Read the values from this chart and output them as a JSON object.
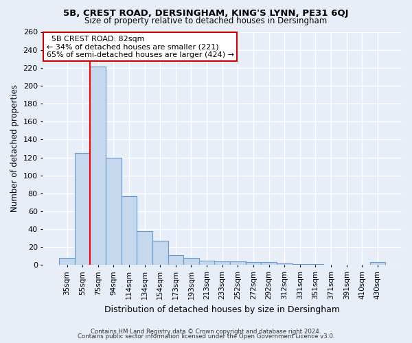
{
  "title1": "5B, CREST ROAD, DERSINGHAM, KING'S LYNN, PE31 6QJ",
  "title2": "Size of property relative to detached houses in Dersingham",
  "xlabel": "Distribution of detached houses by size in Dersingham",
  "ylabel": "Number of detached properties",
  "categories": [
    "35sqm",
    "55sqm",
    "75sqm",
    "94sqm",
    "114sqm",
    "134sqm",
    "154sqm",
    "173sqm",
    "193sqm",
    "213sqm",
    "233sqm",
    "252sqm",
    "272sqm",
    "292sqm",
    "312sqm",
    "331sqm",
    "351sqm",
    "371sqm",
    "391sqm",
    "410sqm",
    "430sqm"
  ],
  "values": [
    8,
    125,
    221,
    120,
    77,
    38,
    27,
    11,
    8,
    5,
    4,
    4,
    3,
    3,
    2,
    1,
    1,
    0,
    0,
    0,
    3
  ],
  "bar_color": "#c5d8ee",
  "bar_edge_color": "#6699cc",
  "red_line_index": 2,
  "annotation_title": "5B CREST ROAD: 82sqm",
  "annotation_line1": "← 34% of detached houses are smaller (221)",
  "annotation_line2": "65% of semi-detached houses are larger (424) →",
  "footer1": "Contains HM Land Registry data © Crown copyright and database right 2024.",
  "footer2": "Contains public sector information licensed under the Open Government Licence v3.0.",
  "ylim": [
    0,
    260
  ],
  "yticks": [
    0,
    20,
    40,
    60,
    80,
    100,
    120,
    140,
    160,
    180,
    200,
    220,
    240,
    260
  ],
  "bg_color": "#e8eef8",
  "plot_bg_color": "#e8eef8",
  "grid_color": "#ffffff",
  "annotation_box_color": "#ffffff",
  "annotation_box_edge": "#cc0000"
}
